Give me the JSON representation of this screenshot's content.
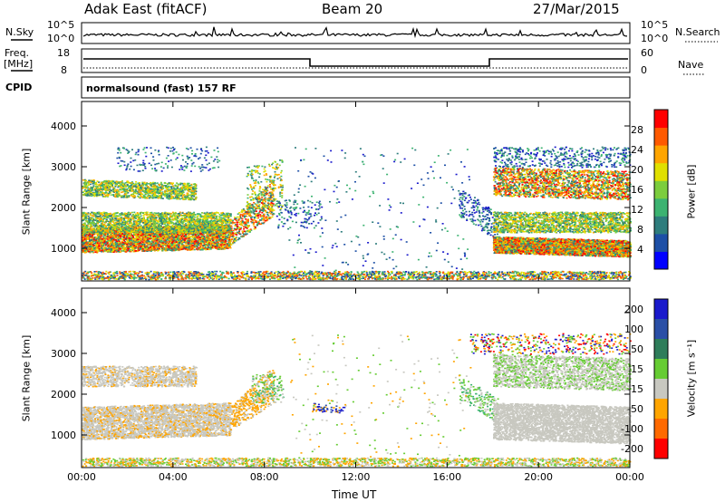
{
  "header": {
    "radar": "Adak East (fitACF)",
    "beam": "Beam 20",
    "date": "27/Mar/2015"
  },
  "top_panel": {
    "left_label": "N.Sky",
    "right_label": "N.Search",
    "left_ticks": [
      "10^5",
      "10^0"
    ],
    "right_ticks": [
      "10^5",
      "10^0"
    ]
  },
  "freq_panel": {
    "left_label_1": "Freq.",
    "left_label_2": "[MHz]",
    "right_label": "Nave",
    "left_ticks": [
      "18",
      "8"
    ],
    "right_ticks": [
      "60",
      "0"
    ]
  },
  "cpid": {
    "label": "CPID",
    "text": "normalsound (fast) 157 RF"
  },
  "colors": {
    "power": [
      "#0000ff",
      "#1d4fa6",
      "#2e7d7d",
      "#3cb371",
      "#7ccd3e",
      "#e0e000",
      "#ffa500",
      "#ff5a00",
      "#ff0000"
    ],
    "velocity": [
      "#1a1acc",
      "#2a4fa6",
      "#2e7d5a",
      "#66cc33",
      "#c8c8c0",
      "#ffa500",
      "#ff6a00",
      "#ff0000"
    ]
  },
  "chart_data": [
    {
      "type": "heatmap",
      "title": "",
      "ylabel": "Slant Range [km]",
      "xlabel": "",
      "x_ticks": [
        "00:00",
        "04:00",
        "08:00",
        "12:00",
        "16:00",
        "20:00",
        "00:00"
      ],
      "y_ticks": [
        "1000",
        "2000",
        "3000",
        "4000"
      ],
      "ylim": [
        200,
        4600
      ],
      "colorbar_label": "Power [dB]",
      "colorbar_ticks": [
        "28",
        "24",
        "20",
        "16",
        "12",
        "8",
        "4"
      ],
      "colorbar_range": [
        0,
        32
      ]
    },
    {
      "type": "heatmap",
      "title": "",
      "ylabel": "Slant Range [km]",
      "xlabel": "Time UT",
      "x_ticks": [
        "00:00",
        "04:00",
        "08:00",
        "12:00",
        "16:00",
        "20:00",
        "00:00"
      ],
      "y_ticks": [
        "1000",
        "2000",
        "3000",
        "4000"
      ],
      "ylim": [
        200,
        4600
      ],
      "colorbar_label": "Velocity [m s⁻¹]",
      "colorbar_ticks": [
        "200",
        "100",
        "50",
        "15",
        "-15",
        "-50",
        "-100",
        "-200"
      ],
      "colorbar_range": [
        -250,
        250
      ]
    }
  ]
}
